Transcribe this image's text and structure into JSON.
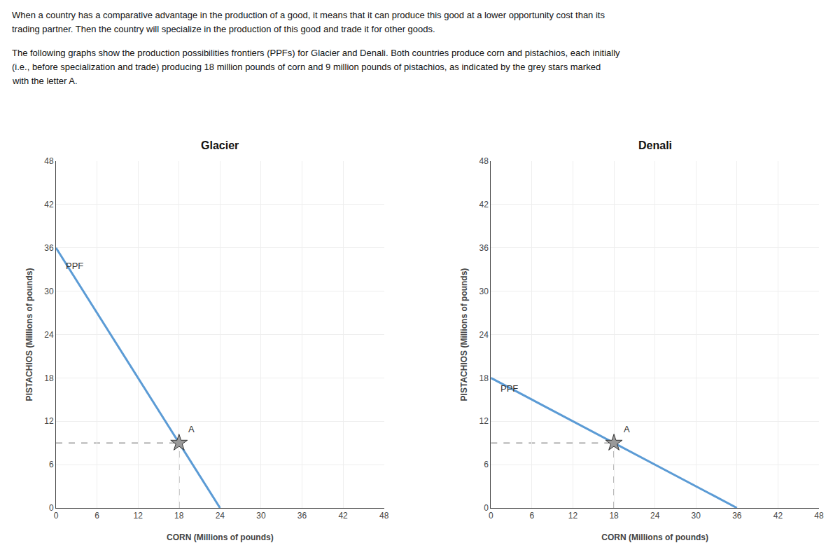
{
  "paragraphs": [
    [
      "When a country has a comparative advantage in the production of a good, it means that it can produce this good at a lower opportunity cost than its",
      "trading partner. Then the country will specialize in the production of this good and trade it for other goods."
    ],
    [
      "The following graphs show the production possibilities frontiers (PPFs) for Glacier and Denali. Both countries produce corn and pistachios, each initially",
      "(i.e., before specialization and trade) producing 18 million pounds of corn and 9 million pounds of pistachios, as indicated by the grey stars marked",
      "with the letter A."
    ]
  ],
  "chart_data": [
    {
      "type": "line",
      "title": "Glacier",
      "xlabel": "CORN (Millions of pounds)",
      "ylabel": "PISTACHIOS (Millions of pounds)",
      "series": [
        {
          "type": "line",
          "color": "#5b9bd5",
          "x": [
            0,
            24
          ],
          "values": [
            36,
            0
          ]
        },
        {
          "type": "scatter",
          "marker": "star",
          "color": "#999999",
          "x": [
            18
          ],
          "values": [
            9
          ]
        }
      ],
      "annotations": [
        {
          "text": "PPF",
          "x": 1.2,
          "y": 33.5
        },
        {
          "text": "A",
          "x": 19.2,
          "y": 10
        }
      ],
      "xlim": [
        0,
        48
      ],
      "ylim": [
        0,
        48
      ],
      "xticks": [
        0,
        6,
        12,
        18,
        24,
        30,
        36,
        42,
        48
      ],
      "yticks": [
        0,
        6,
        12,
        18,
        24,
        30,
        36,
        42,
        48
      ],
      "grid": true
    },
    {
      "type": "line",
      "title": "Denali",
      "xlabel": "CORN (Millions of pounds)",
      "ylabel": "PISTACHIOS (Millions of pounds)",
      "series": [
        {
          "type": "line",
          "color": "#5b9bd5",
          "x": [
            0,
            36
          ],
          "values": [
            18,
            0
          ]
        },
        {
          "type": "scatter",
          "marker": "star",
          "color": "#999999",
          "x": [
            18
          ],
          "values": [
            9
          ]
        }
      ],
      "annotations": [
        {
          "text": "PPF",
          "x": 1.2,
          "y": 16.5
        },
        {
          "text": "A",
          "x": 19.2,
          "y": 10
        }
      ],
      "xlim": [
        0,
        48
      ],
      "ylim": [
        0,
        48
      ],
      "xticks": [
        0,
        6,
        12,
        18,
        24,
        30,
        36,
        42,
        48
      ],
      "yticks": [
        0,
        6,
        12,
        18,
        24,
        30,
        36,
        42,
        48
      ],
      "grid": true
    }
  ]
}
